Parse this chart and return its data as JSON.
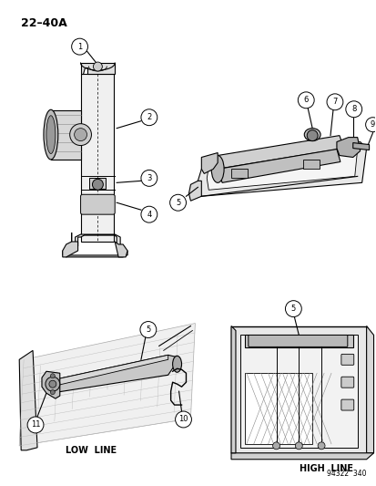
{
  "title": "22–40A",
  "background_color": "#ffffff",
  "page_number": "94322  340",
  "fig_w": 4.14,
  "fig_h": 5.33,
  "dpi": 100,
  "label_low": "LOW  LINE",
  "label_high": "HIGH  LINE"
}
